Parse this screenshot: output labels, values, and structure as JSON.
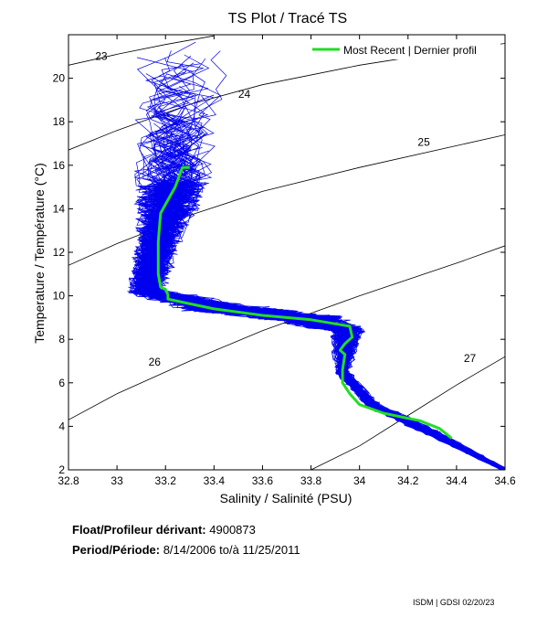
{
  "chart_data": {
    "type": "line",
    "title": "TS Plot / Tracé TS",
    "xlabel": "Salinity / Salinité (PSU)",
    "ylabel": "Temperature / Température (°C)",
    "xlim": [
      32.8,
      34.6
    ],
    "ylim": [
      2,
      22
    ],
    "xticks": [
      32.8,
      33,
      33.2,
      33.4,
      33.6,
      33.8,
      34,
      34.2,
      34.4,
      34.6
    ],
    "xtick_labels": [
      "32.8",
      "33",
      "33.2",
      "33.4",
      "33.6",
      "33.8",
      "34",
      "34.2",
      "34.4",
      "34.6"
    ],
    "yticks": [
      2,
      4,
      6,
      8,
      10,
      12,
      14,
      16,
      18,
      20
    ],
    "ytick_labels": [
      "2",
      "4",
      "6",
      "8",
      "10",
      "12",
      "14",
      "16",
      "18",
      "20"
    ],
    "grid": false,
    "legend": {
      "position": "top-right",
      "label": "Most Recent | Dernier profil"
    },
    "series": [
      {
        "name": "Most Recent | Dernier profil",
        "color": "#22dd22",
        "x": [
          33.3,
          33.27,
          33.24,
          33.2,
          33.18,
          33.17,
          33.17,
          33.18,
          33.2,
          33.21,
          33.21,
          33.23,
          33.4,
          33.6,
          33.8,
          33.96,
          33.97,
          33.94,
          33.92,
          33.94,
          33.93,
          33.93,
          33.96,
          34.0,
          34.1,
          34.25,
          34.33,
          34.38
        ],
        "y": [
          15.9,
          15.9,
          15.0,
          14.2,
          13.8,
          12.5,
          11.0,
          10.4,
          10.3,
          10.05,
          9.85,
          9.8,
          9.4,
          9.1,
          8.9,
          8.6,
          8.1,
          7.8,
          7.5,
          7.3,
          6.6,
          6.0,
          5.5,
          5.0,
          4.6,
          4.25,
          3.9,
          3.45
        ]
      }
    ],
    "background_color": "#0000ee",
    "density_lines": [
      {
        "label": "23",
        "label_x": 32.91,
        "label_y": 20.85,
        "x": [
          32.8,
          33.0,
          33.2,
          33.4
        ],
        "y": [
          20.6,
          21.1,
          21.55,
          21.95
        ]
      },
      {
        "label": "24",
        "label_x": 33.5,
        "label_y": 19.1,
        "x": [
          32.8,
          33.0,
          33.3,
          33.6,
          34.0,
          34.4,
          34.6
        ],
        "y": [
          16.7,
          17.6,
          18.8,
          19.7,
          20.6,
          21.3,
          21.6
        ]
      },
      {
        "label": "25",
        "label_x": 34.24,
        "label_y": 16.9,
        "x": [
          32.8,
          33.0,
          33.3,
          33.6,
          34.0,
          34.4,
          34.6
        ],
        "y": [
          11.4,
          12.4,
          13.7,
          14.8,
          15.9,
          16.9,
          17.4
        ]
      },
      {
        "label": "26",
        "label_x": 33.13,
        "label_y": 6.8,
        "x": [
          32.8,
          33.0,
          33.3,
          33.6,
          34.0,
          34.4,
          34.6
        ],
        "y": [
          4.3,
          5.5,
          7.0,
          8.4,
          10.0,
          11.5,
          12.3
        ]
      },
      {
        "label": "27",
        "label_x": 34.43,
        "label_y": 6.95,
        "x": [
          33.8,
          34.0,
          34.2,
          34.4,
          34.6
        ],
        "y": [
          2.0,
          3.1,
          4.5,
          5.9,
          7.2
        ]
      }
    ]
  },
  "info": {
    "float_label": "Float/Profileur dérivant:",
    "float_value": "4900873",
    "period_label": "Period/Période:",
    "period_value": "8/14/2006  to/à  11/25/2011"
  },
  "credit": "ISDM | GDSI  02/20/23"
}
